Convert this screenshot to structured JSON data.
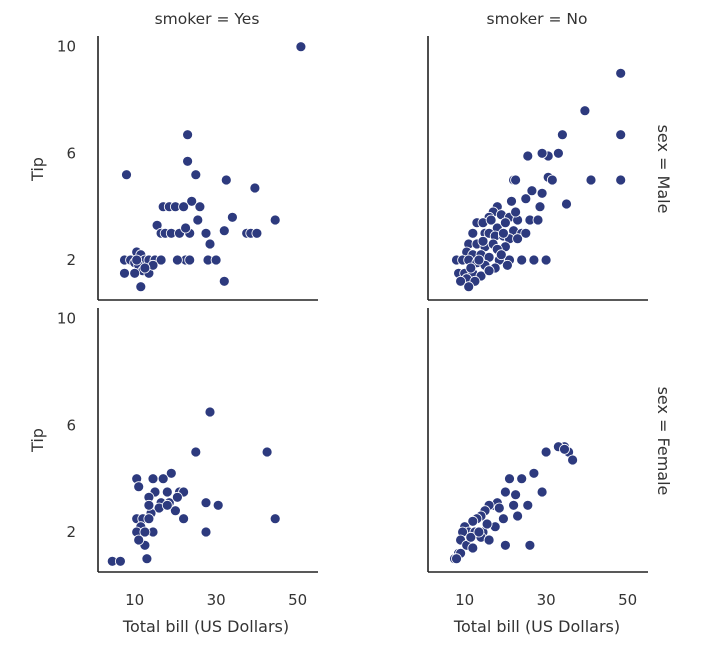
{
  "chart_data": {
    "type": "scatter",
    "point_color": "#2d3a7e",
    "x_ticks": [
      10,
      30,
      50
    ],
    "y_ticks": [
      2,
      6,
      10
    ],
    "xlim": [
      1,
      55
    ],
    "ylim": [
      0.5,
      10.4
    ],
    "grid": false,
    "xlabel": "Total bill (US Dollars)",
    "ylabel": "Tip",
    "panels": [
      {
        "col_label": "smoker = Yes",
        "row_label": "sex = Male",
        "points": [
          [
            50.8,
            10.0
          ],
          [
            23.0,
            6.7
          ],
          [
            23.0,
            5.7
          ],
          [
            8.0,
            5.2
          ],
          [
            25.0,
            5.2
          ],
          [
            32.5,
            5.0
          ],
          [
            39.5,
            4.7
          ],
          [
            24.0,
            4.2
          ],
          [
            17.0,
            4.0
          ],
          [
            18.5,
            4.0
          ],
          [
            20.0,
            4.0
          ],
          [
            22.0,
            4.0
          ],
          [
            26.0,
            4.0
          ],
          [
            34.0,
            3.6
          ],
          [
            44.5,
            3.5
          ],
          [
            25.5,
            3.5
          ],
          [
            15.5,
            3.3
          ],
          [
            16.5,
            3.0
          ],
          [
            17.5,
            3.0
          ],
          [
            19.0,
            3.0
          ],
          [
            21.0,
            3.0
          ],
          [
            23.5,
            3.0
          ],
          [
            27.5,
            3.0
          ],
          [
            32.0,
            3.1
          ],
          [
            37.5,
            3.0
          ],
          [
            38.5,
            3.0
          ],
          [
            40.0,
            3.0
          ],
          [
            22.5,
            3.2
          ],
          [
            28.5,
            2.6
          ],
          [
            28.0,
            2.0
          ],
          [
            10.5,
            2.3
          ],
          [
            11.5,
            2.2
          ],
          [
            12.5,
            2.0
          ],
          [
            13.5,
            2.0
          ],
          [
            15.0,
            2.0
          ],
          [
            16.5,
            2.0
          ],
          [
            7.5,
            2.0
          ],
          [
            9.0,
            2.0
          ],
          [
            10.0,
            1.9
          ],
          [
            11.0,
            1.8
          ],
          [
            12.0,
            1.6
          ],
          [
            7.5,
            1.5
          ],
          [
            10.0,
            1.5
          ],
          [
            13.5,
            1.5
          ],
          [
            11.5,
            1.0
          ],
          [
            32.0,
            1.2
          ],
          [
            22.5,
            2.0
          ],
          [
            23.5,
            2.0
          ],
          [
            30.0,
            2.0
          ],
          [
            20.5,
            2.0
          ],
          [
            14.5,
            1.8
          ],
          [
            10.5,
            2.0
          ],
          [
            12.5,
            1.7
          ]
        ]
      },
      {
        "col_label": "smoker = No",
        "row_label": "sex = Male",
        "points": [
          [
            48.3,
            9.0
          ],
          [
            39.5,
            7.6
          ],
          [
            34.0,
            6.7
          ],
          [
            48.3,
            6.7
          ],
          [
            30.5,
            5.9
          ],
          [
            33.0,
            6.0
          ],
          [
            29.0,
            6.0
          ],
          [
            25.5,
            5.9
          ],
          [
            22.0,
            5.0
          ],
          [
            22.5,
            5.0
          ],
          [
            30.5,
            5.1
          ],
          [
            31.5,
            5.0
          ],
          [
            41.0,
            5.0
          ],
          [
            48.3,
            5.0
          ],
          [
            35.0,
            4.1
          ],
          [
            29.0,
            4.5
          ],
          [
            25.0,
            4.3
          ],
          [
            21.5,
            4.2
          ],
          [
            18.0,
            4.0
          ],
          [
            17.0,
            3.8
          ],
          [
            16.0,
            3.6
          ],
          [
            19.0,
            3.7
          ],
          [
            21.0,
            3.6
          ],
          [
            23.0,
            3.5
          ],
          [
            26.0,
            3.5
          ],
          [
            28.0,
            3.5
          ],
          [
            13.0,
            3.4
          ],
          [
            14.5,
            3.4
          ],
          [
            18.0,
            3.2
          ],
          [
            20.0,
            3.4
          ],
          [
            22.0,
            3.1
          ],
          [
            24.0,
            3.0
          ],
          [
            12.0,
            3.0
          ],
          [
            15.0,
            3.0
          ],
          [
            16.0,
            3.0
          ],
          [
            17.5,
            2.9
          ],
          [
            19.5,
            2.9
          ],
          [
            21.0,
            2.8
          ],
          [
            23.0,
            2.8
          ],
          [
            11.0,
            2.6
          ],
          [
            13.0,
            2.6
          ],
          [
            15.0,
            2.5
          ],
          [
            17.0,
            2.6
          ],
          [
            20.0,
            2.5
          ],
          [
            10.5,
            2.3
          ],
          [
            12.0,
            2.2
          ],
          [
            14.0,
            2.2
          ],
          [
            16.0,
            2.1
          ],
          [
            18.5,
            2.0
          ],
          [
            21.0,
            2.0
          ],
          [
            24.0,
            2.0
          ],
          [
            27.0,
            2.0
          ],
          [
            30.0,
            2.0
          ],
          [
            8.0,
            2.0
          ],
          [
            9.5,
            2.0
          ],
          [
            11.0,
            2.0
          ],
          [
            13.0,
            1.9
          ],
          [
            15.0,
            1.8
          ],
          [
            17.5,
            1.7
          ],
          [
            20.5,
            1.8
          ],
          [
            8.5,
            1.5
          ],
          [
            10.0,
            1.5
          ],
          [
            12.0,
            1.5
          ],
          [
            14.0,
            1.4
          ],
          [
            16.0,
            1.6
          ],
          [
            10.5,
            1.3
          ],
          [
            12.5,
            1.2
          ],
          [
            9.0,
            1.2
          ],
          [
            11.0,
            1.0
          ],
          [
            14.5,
            2.7
          ],
          [
            19.5,
            3.0
          ],
          [
            22.5,
            3.8
          ],
          [
            18.0,
            2.4
          ],
          [
            13.5,
            2.0
          ],
          [
            25.0,
            3.0
          ],
          [
            28.5,
            4.0
          ],
          [
            16.5,
            3.5
          ],
          [
            19.0,
            2.2
          ],
          [
            11.5,
            1.7
          ],
          [
            26.5,
            4.6
          ]
        ]
      },
      {
        "col_label": "",
        "row_label": "sex = Female",
        "points": [
          [
            28.5,
            6.5
          ],
          [
            42.5,
            5.0
          ],
          [
            25.0,
            5.0
          ],
          [
            19.0,
            4.2
          ],
          [
            10.5,
            4.0
          ],
          [
            14.5,
            4.0
          ],
          [
            17.0,
            4.0
          ],
          [
            15.0,
            3.5
          ],
          [
            18.0,
            3.5
          ],
          [
            21.0,
            3.5
          ],
          [
            22.0,
            3.5
          ],
          [
            13.5,
            3.3
          ],
          [
            16.5,
            3.1
          ],
          [
            18.5,
            3.1
          ],
          [
            27.5,
            3.1
          ],
          [
            30.5,
            3.0
          ],
          [
            16.0,
            2.9
          ],
          [
            14.0,
            2.7
          ],
          [
            20.0,
            2.8
          ],
          [
            22.0,
            2.5
          ],
          [
            10.5,
            2.5
          ],
          [
            12.0,
            2.5
          ],
          [
            13.5,
            2.5
          ],
          [
            44.5,
            2.5
          ],
          [
            11.5,
            2.2
          ],
          [
            10.5,
            2.0
          ],
          [
            14.5,
            2.0
          ],
          [
            27.5,
            2.0
          ],
          [
            12.5,
            1.5
          ],
          [
            13.0,
            1.0
          ],
          [
            4.5,
            0.9
          ],
          [
            6.5,
            0.9
          ],
          [
            11.0,
            1.7
          ],
          [
            12.5,
            2.0
          ],
          [
            18.0,
            3.0
          ],
          [
            13.5,
            3.0
          ],
          [
            11.0,
            3.7
          ],
          [
            20.5,
            3.3
          ]
        ]
      },
      {
        "col_label": "",
        "row_label": "sex = Female",
        "points": [
          [
            34.5,
            5.2
          ],
          [
            35.5,
            5.0
          ],
          [
            36.5,
            4.7
          ],
          [
            30.0,
            5.0
          ],
          [
            33.0,
            5.2
          ],
          [
            27.0,
            4.2
          ],
          [
            24.0,
            4.0
          ],
          [
            21.0,
            4.0
          ],
          [
            29.0,
            3.5
          ],
          [
            20.0,
            3.5
          ],
          [
            17.0,
            3.0
          ],
          [
            18.0,
            3.1
          ],
          [
            22.0,
            3.0
          ],
          [
            16.0,
            3.0
          ],
          [
            15.0,
            2.8
          ],
          [
            14.0,
            2.6
          ],
          [
            13.0,
            2.5
          ],
          [
            12.0,
            2.4
          ],
          [
            10.0,
            2.2
          ],
          [
            11.0,
            2.0
          ],
          [
            9.5,
            2.0
          ],
          [
            12.5,
            2.0
          ],
          [
            14.5,
            2.0
          ],
          [
            17.5,
            2.2
          ],
          [
            19.5,
            2.5
          ],
          [
            23.0,
            2.6
          ],
          [
            9.0,
            1.7
          ],
          [
            10.5,
            1.5
          ],
          [
            12.0,
            1.4
          ],
          [
            14.0,
            1.8
          ],
          [
            16.0,
            1.7
          ],
          [
            8.5,
            1.2
          ],
          [
            7.5,
            1.0
          ],
          [
            20.0,
            1.5
          ],
          [
            26.0,
            1.5
          ],
          [
            18.5,
            2.9
          ],
          [
            25.5,
            3.0
          ],
          [
            15.5,
            2.3
          ],
          [
            11.5,
            1.8
          ],
          [
            13.5,
            2.0
          ],
          [
            9.0,
            1.2
          ],
          [
            22.5,
            3.4
          ],
          [
            8.0,
            1.0
          ],
          [
            34.5,
            5.1
          ]
        ]
      }
    ]
  }
}
